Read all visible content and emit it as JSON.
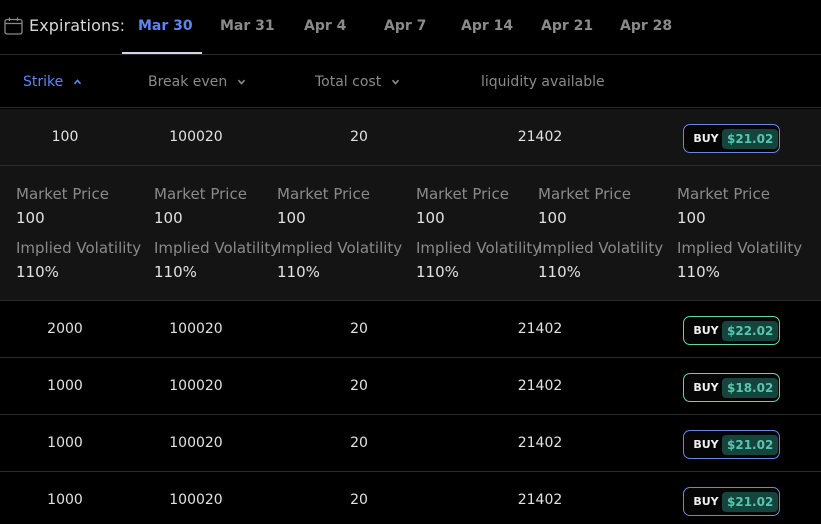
{
  "expirations": {
    "label": "Expirations:",
    "tabs": [
      "Mar 30",
      "Mar 31",
      "Apr 4",
      "Apr 7",
      "Apr 14",
      "Apr 21",
      "Apr 28"
    ],
    "active_tab": "Mar 30"
  },
  "columns": {
    "strike": "Strike",
    "break_even": "Break even",
    "total_cost": "Total cost",
    "liquidity": "liquidity available",
    "sorted_by": "Strike"
  },
  "rows": [
    {
      "strike": "100",
      "break_even": "100020",
      "total_cost": "20",
      "liquidity": "21402",
      "buy_label": "BUY",
      "price": "$21.02",
      "border": "blue"
    },
    {
      "strike": "2000",
      "break_even": "100020",
      "total_cost": "20",
      "liquidity": "21402",
      "buy_label": "BUY",
      "price": "$22.02",
      "border": "green"
    },
    {
      "strike": "1000",
      "break_even": "100020",
      "total_cost": "20",
      "liquidity": "21402",
      "buy_label": "BUY",
      "price": "$18.02",
      "border": "green"
    },
    {
      "strike": "1000",
      "break_even": "100020",
      "total_cost": "20",
      "liquidity": "21402",
      "buy_label": "BUY",
      "price": "$21.02",
      "border": "blue"
    },
    {
      "strike": "1000",
      "break_even": "100020",
      "total_cost": "20",
      "liquidity": "21402",
      "buy_label": "BUY",
      "price": "$21.02",
      "border": "blue"
    }
  ],
  "details": [
    {
      "market_price_label": "Market Price",
      "market_price": "100",
      "iv_label": "Implied Volatility",
      "iv": "110%"
    },
    {
      "market_price_label": "Market Price",
      "market_price": "100",
      "iv_label": "Implied Volatility",
      "iv": "110%"
    },
    {
      "market_price_label": "Market Price",
      "market_price": "100",
      "iv_label": "Implied Volatility",
      "iv": "110%"
    },
    {
      "market_price_label": "Market Price",
      "market_price": "100",
      "iv_label": "Implied Volatility",
      "iv": "110%"
    },
    {
      "market_price_label": "Market Price",
      "market_price": "100",
      "iv_label": "Implied Volatility",
      "iv": "110%"
    },
    {
      "market_price_label": "Market Price",
      "market_price": "100",
      "iv_label": "Implied Volatility",
      "iv": "110%"
    }
  ],
  "colors": {
    "accent": "#5f86f0",
    "buy_border_blue": "#6c86e0",
    "buy_border_green": "#63d7a6",
    "price_text": "#58c5b0",
    "price_bg": "#14443c"
  },
  "icons": {
    "expirations": "calendar-icon",
    "sort": "chevron-icon"
  }
}
